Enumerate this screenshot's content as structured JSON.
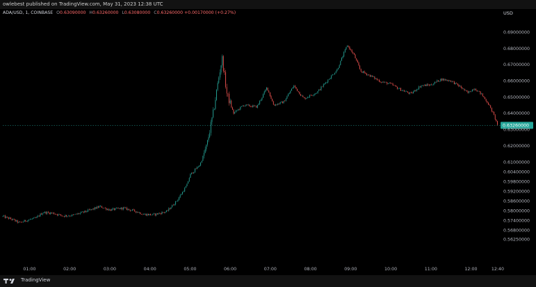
{
  "header": {
    "text": "owlebest published on TradingView.com, May 31, 2023 12:38 UTC"
  },
  "legend": {
    "symbol": "ADA/USD, 1, COINBASE",
    "open_label": "O",
    "open": "0.63090000",
    "high_label": "H",
    "high": "0.63260000",
    "low_label": "L",
    "low": "0.63080000",
    "close_label": "C",
    "close": "0.63260000",
    "change": "+0.00170000 (+0.27%)"
  },
  "currency": "USD",
  "footer": {
    "brand": "TradingView"
  },
  "colors": {
    "up": "#26a69a",
    "down": "#ef5350",
    "last_price_bg": "#26a69a",
    "background": "#000000"
  },
  "chart_data": {
    "type": "candlestick",
    "ylim": [
      0.5527,
      0.6918
    ],
    "y_tick_labels": [
      "0.69000000",
      "0.68000000",
      "0.67000000",
      "0.66000000",
      "0.65000000",
      "0.64000000",
      "0.63000000",
      "0.62000000",
      "0.61000000",
      "0.60400000",
      "0.59800000",
      "0.59200000",
      "0.58600000",
      "0.58000000",
      "0.57400000",
      "0.56800000",
      "0.56250000"
    ],
    "x_tick_labels": [
      "01:00",
      "02:00",
      "03:00",
      "04:00",
      "05:00",
      "06:00",
      "07:00",
      "08:00",
      "09:00",
      "10:00",
      "11:00",
      "12:00",
      "12:40"
    ],
    "last_price": "0.63260000",
    "time_start": "00:20",
    "time_end": "12:40",
    "price_path": [
      [
        "00:20",
        0.5765
      ],
      [
        "00:35",
        0.5745
      ],
      [
        "00:45",
        0.5725
      ],
      [
        "00:55",
        0.574
      ],
      [
        "01:10",
        0.5755
      ],
      [
        "01:20",
        0.579
      ],
      [
        "01:35",
        0.5785
      ],
      [
        "01:50",
        0.5768
      ],
      [
        "02:05",
        0.5772
      ],
      [
        "02:20",
        0.579
      ],
      [
        "02:35",
        0.581
      ],
      [
        "02:45",
        0.5826
      ],
      [
        "03:00",
        0.5805
      ],
      [
        "03:20",
        0.5816
      ],
      [
        "03:40",
        0.5795
      ],
      [
        "03:50",
        0.5778
      ],
      [
        "04:05",
        0.5775
      ],
      [
        "04:25",
        0.5795
      ],
      [
        "04:40",
        0.586
      ],
      [
        "04:55",
        0.5955
      ],
      [
        "05:00",
        0.602
      ],
      [
        "05:15",
        0.6085
      ],
      [
        "05:25",
        0.62
      ],
      [
        "05:35",
        0.641
      ],
      [
        "05:42",
        0.66
      ],
      [
        "05:48",
        0.674
      ],
      [
        "05:55",
        0.652
      ],
      [
        "06:05",
        0.64
      ],
      [
        "06:20",
        0.645
      ],
      [
        "06:40",
        0.644
      ],
      [
        "06:55",
        0.656
      ],
      [
        "07:05",
        0.645
      ],
      [
        "07:20",
        0.647
      ],
      [
        "07:35",
        0.657
      ],
      [
        "07:50",
        0.649
      ],
      [
        "08:10",
        0.653
      ],
      [
        "08:25",
        0.66
      ],
      [
        "08:40",
        0.667
      ],
      [
        "08:55",
        0.682
      ],
      [
        "09:05",
        0.676
      ],
      [
        "09:15",
        0.666
      ],
      [
        "09:30",
        0.663
      ],
      [
        "09:45",
        0.6595
      ],
      [
        "10:00",
        0.658
      ],
      [
        "10:15",
        0.6545
      ],
      [
        "10:30",
        0.652
      ],
      [
        "10:45",
        0.657
      ],
      [
        "11:00",
        0.6575
      ],
      [
        "11:15",
        0.661
      ],
      [
        "11:30",
        0.66
      ],
      [
        "11:45",
        0.656
      ],
      [
        "11:55",
        0.6525
      ],
      [
        "12:05",
        0.6555
      ],
      [
        "12:15",
        0.652
      ],
      [
        "12:25",
        0.6465
      ],
      [
        "12:33",
        0.64
      ],
      [
        "12:40",
        0.6326
      ]
    ]
  }
}
